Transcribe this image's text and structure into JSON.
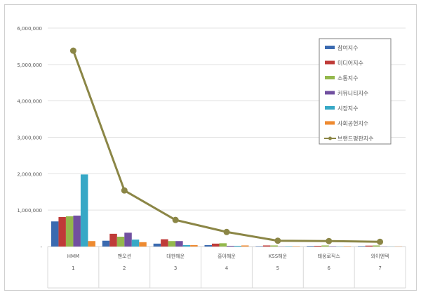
{
  "chart_data": {
    "type": "bar",
    "title": "",
    "xlabel": "",
    "ylabel": "",
    "ylim": [
      0,
      6000000
    ],
    "yticks": [
      0,
      1000000,
      2000000,
      3000000,
      4000000,
      5000000,
      6000000
    ],
    "ytick_labels": [
      "-",
      "1,000,000",
      "2,000,000",
      "3,000,000",
      "4,000,000",
      "5,000,000",
      "6,000,000"
    ],
    "grid": true,
    "legend_position": "top-right",
    "categories": [
      "HMM",
      "팬오션",
      "대한해운",
      "흥아해운",
      "KSS해운",
      "태웅로직스",
      "와이엔텍"
    ],
    "category_ranks": [
      "1",
      "2",
      "3",
      "4",
      "5",
      "6",
      "7"
    ],
    "series": [
      {
        "name": "참여지수",
        "kind": "bar",
        "color": "#3a6ab0",
        "values": [
          690000,
          160000,
          80000,
          40000,
          10000,
          15000,
          12000
        ]
      },
      {
        "name": "미디어지수",
        "kind": "bar",
        "color": "#bf3b38",
        "values": [
          810000,
          350000,
          200000,
          80000,
          30000,
          20000,
          25000
        ]
      },
      {
        "name": "소통지수",
        "kind": "bar",
        "color": "#94b84c",
        "values": [
          830000,
          270000,
          150000,
          90000,
          30000,
          30000,
          30000
        ]
      },
      {
        "name": "커뮤니티지수",
        "kind": "bar",
        "color": "#7150a0",
        "values": [
          850000,
          380000,
          150000,
          20000,
          5000,
          10000,
          5000
        ]
      },
      {
        "name": "시장지수",
        "kind": "bar",
        "color": "#37a8c6",
        "values": [
          1980000,
          190000,
          40000,
          20000,
          10000,
          5000,
          3000
        ]
      },
      {
        "name": "사회공헌지수",
        "kind": "bar",
        "color": "#ee8a30",
        "values": [
          150000,
          120000,
          40000,
          30000,
          10000,
          10000,
          5000
        ]
      },
      {
        "name": "브랜드평판지수",
        "kind": "line",
        "color": "#8b8646",
        "values": [
          5380000,
          1540000,
          730000,
          400000,
          160000,
          150000,
          130000
        ]
      }
    ]
  }
}
